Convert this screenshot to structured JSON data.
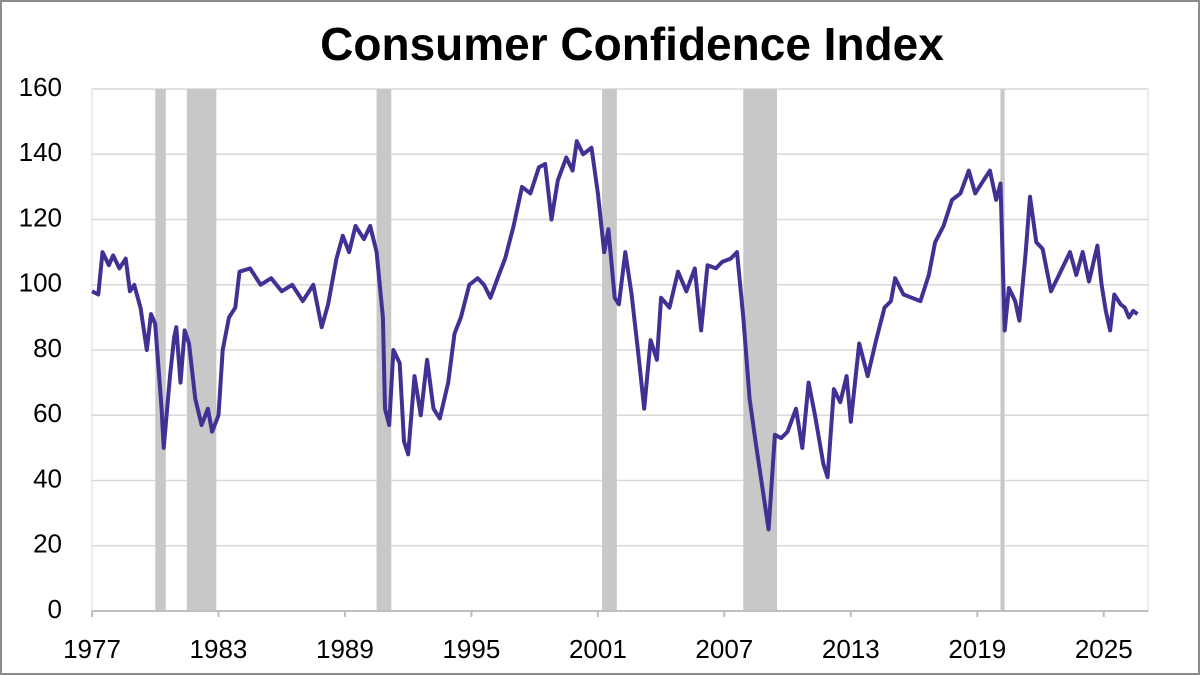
{
  "chart_data": {
    "type": "line",
    "title": "Consumer Confidence Index",
    "x": [
      1977.0,
      1977.3,
      1977.5,
      1977.8,
      1978.0,
      1978.3,
      1978.6,
      1978.8,
      1979.0,
      1979.3,
      1979.6,
      1979.8,
      1980.0,
      1980.3,
      1980.4,
      1980.7,
      1980.9,
      1981.0,
      1981.2,
      1981.4,
      1981.6,
      1981.9,
      1982.2,
      1982.5,
      1982.7,
      1983.0,
      1983.2,
      1983.5,
      1983.8,
      1984.0,
      1984.5,
      1985.0,
      1985.5,
      1986.0,
      1986.5,
      1987.0,
      1987.5,
      1987.9,
      1988.2,
      1988.6,
      1988.9,
      1989.2,
      1989.5,
      1989.9,
      1990.2,
      1990.5,
      1990.8,
      1990.9,
      1991.1,
      1991.3,
      1991.6,
      1991.8,
      1992.0,
      1992.3,
      1992.6,
      1992.9,
      1993.2,
      1993.5,
      1993.9,
      1994.2,
      1994.5,
      1994.9,
      1995.3,
      1995.6,
      1995.9,
      1996.3,
      1996.6,
      1997.0,
      1997.4,
      1997.8,
      1998.2,
      1998.5,
      1998.8,
      1999.1,
      1999.5,
      1999.8,
      2000.0,
      2000.3,
      2000.7,
      2001.0,
      2001.3,
      2001.5,
      2001.8,
      2002.0,
      2002.3,
      2002.6,
      2002.9,
      2003.2,
      2003.5,
      2003.8,
      2004.0,
      2004.4,
      2004.8,
      2005.2,
      2005.6,
      2005.9,
      2006.2,
      2006.6,
      2006.9,
      2007.3,
      2007.6,
      2007.9,
      2008.2,
      2008.5,
      2008.8,
      2009.1,
      2009.4,
      2009.7,
      2010.0,
      2010.4,
      2010.7,
      2011.0,
      2011.3,
      2011.7,
      2011.9,
      2012.2,
      2012.5,
      2012.8,
      2013.0,
      2013.4,
      2013.8,
      2014.2,
      2014.6,
      2014.9,
      2015.1,
      2015.5,
      2015.9,
      2016.3,
      2016.7,
      2017.0,
      2017.4,
      2017.8,
      2018.2,
      2018.6,
      2018.9,
      2019.2,
      2019.6,
      2019.9,
      2020.1,
      2020.3,
      2020.5,
      2020.8,
      2021.0,
      2021.3,
      2021.5,
      2021.8,
      2022.1,
      2022.5,
      2022.8,
      2023.1,
      2023.4,
      2023.7,
      2024.0,
      2024.3,
      2024.7,
      2024.9,
      2025.1,
      2025.3,
      2025.5,
      2025.8,
      2026.0,
      2026.2,
      2026.4,
      2026.6
    ],
    "series": [
      {
        "color": "#3f3294",
        "values": [
          98,
          97,
          110,
          106,
          109,
          105,
          108,
          98,
          100,
          93,
          80,
          91,
          88,
          62,
          50,
          72,
          84,
          87,
          70,
          86,
          82,
          65,
          57,
          62,
          55,
          60,
          80,
          90,
          93,
          104,
          105,
          100,
          102,
          98,
          100,
          95,
          100,
          87,
          94,
          108,
          115,
          110,
          118,
          114,
          118,
          110,
          90,
          62,
          57,
          80,
          76,
          52,
          48,
          72,
          60,
          77,
          62,
          59,
          70,
          85,
          90,
          100,
          102,
          100,
          96,
          103,
          108,
          118,
          130,
          128,
          136,
          137,
          120,
          132,
          139,
          135,
          144,
          140,
          142,
          128,
          110,
          117,
          96,
          94,
          110,
          97,
          80,
          62,
          83,
          77,
          96,
          93,
          104,
          98,
          105,
          86,
          106,
          105,
          107,
          108,
          110,
          90,
          65,
          51,
          38,
          25,
          54,
          53,
          55,
          62,
          50,
          70,
          60,
          45,
          41,
          68,
          64,
          72,
          58,
          82,
          72,
          83,
          93,
          95,
          102,
          97,
          96,
          95,
          103,
          113,
          118,
          126,
          128,
          135,
          128,
          131,
          135,
          126,
          131,
          86,
          99,
          95,
          89,
          110,
          127,
          113,
          111,
          98,
          102,
          106,
          110,
          103,
          110,
          101,
          112,
          100,
          92,
          86,
          97,
          94,
          93,
          90,
          92,
          91
        ]
      }
    ],
    "recessions": [
      [
        1980.0,
        1980.5
      ],
      [
        1981.5,
        1982.9
      ],
      [
        1990.5,
        1991.2
      ],
      [
        2001.2,
        2001.9
      ],
      [
        2007.9,
        2009.5
      ],
      [
        2020.1,
        2020.3
      ]
    ],
    "recession_color": "#c8c8c8",
    "xlim": [
      1977,
      2027.1
    ],
    "xticks": [
      1977,
      1983,
      1989,
      1995,
      2001,
      2007,
      2013,
      2019,
      2025
    ],
    "ylim": [
      0,
      160
    ],
    "yticks": [
      0,
      20,
      40,
      60,
      80,
      100,
      120,
      140,
      160
    ],
    "grid": true
  }
}
